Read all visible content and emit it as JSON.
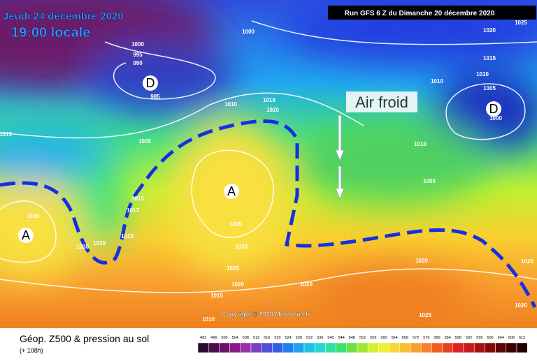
{
  "header": {
    "date": "Jeudi 24 décembre 2020",
    "time": "19:00 locale",
    "run": "Run GFS 6 Z du Dimanche 20 décembre 2020"
  },
  "annotation": "Air froid",
  "copyright": "Copyright © 2020 Meteociel.fr",
  "pressure_centers": [
    "D",
    "D",
    "A",
    "A"
  ],
  "isobar_labels": [
    "1000",
    "1000",
    "995",
    "990",
    "985",
    "1010",
    "1015",
    "1020",
    "1005",
    "1015",
    "1035",
    "1030",
    "1025",
    "1015",
    "1015",
    "1017",
    "1035",
    "1030",
    "1025",
    "1020",
    "1015",
    "1010",
    "1020",
    "1020",
    "1025",
    "1025",
    "1020",
    "1005",
    "1010",
    "1010",
    "1005",
    "1000",
    "1010",
    "1015",
    "1020",
    "1025"
  ],
  "footer": {
    "title": "Géop. Z500 & pression au sol",
    "subtitle": "(+ 108h)"
  },
  "scale": {
    "values": [
      492,
      496,
      500,
      504,
      508,
      512,
      516,
      520,
      524,
      528,
      532,
      536,
      540,
      544,
      548,
      552,
      556,
      560,
      564,
      568,
      572,
      576,
      580,
      584,
      588,
      592,
      596,
      600,
      604,
      608,
      612
    ],
    "colors": [
      "#2d0a2d",
      "#4a0f4a",
      "#6a116a",
      "#8a1a8a",
      "#9a2fa8",
      "#7a3fc0",
      "#5050d8",
      "#2f5fe8",
      "#1f7ff0",
      "#1fa0f0",
      "#20c0e8",
      "#20d8d0",
      "#30e0a0",
      "#40e070",
      "#70e040",
      "#a0e830",
      "#d0f030",
      "#f0f030",
      "#f8d830",
      "#f8c030",
      "#f8a030",
      "#f88030",
      "#f06020",
      "#e84020",
      "#e02020",
      "#c81818",
      "#a81010",
      "#880808",
      "#600404",
      "#400000",
      "#200000"
    ]
  }
}
